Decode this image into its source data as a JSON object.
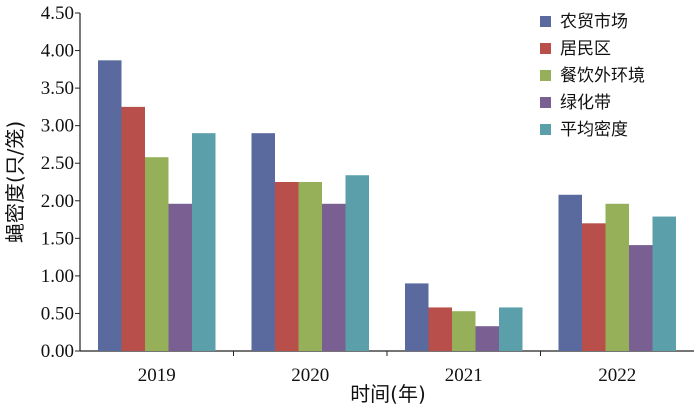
{
  "chart_data": {
    "type": "bar",
    "xlabel": "时间(年)",
    "ylabel": "蝇密度(只/笼)",
    "categories": [
      "2019",
      "2020",
      "2021",
      "2022"
    ],
    "ylim": [
      0,
      4.5
    ],
    "yticks": [
      "0.00",
      "0.50",
      "1.00",
      "1.50",
      "2.00",
      "2.50",
      "3.00",
      "3.50",
      "4.00",
      "4.50"
    ],
    "grid": false,
    "legend_position": "top-right",
    "series": [
      {
        "name": "农贸市场",
        "color": "#5b6a9e",
        "values": [
          3.87,
          2.9,
          0.9,
          2.08
        ]
      },
      {
        "name": "居民区",
        "color": "#b84f4a",
        "values": [
          3.25,
          2.25,
          0.58,
          1.7
        ]
      },
      {
        "name": "餐饮外环境",
        "color": "#96b05a",
        "values": [
          2.58,
          2.25,
          0.53,
          1.96
        ]
      },
      {
        "name": "绿化带",
        "color": "#7a5f92",
        "values": [
          1.96,
          1.96,
          0.33,
          1.41
        ]
      },
      {
        "name": "平均密度",
        "color": "#5b9faa",
        "values": [
          2.9,
          2.34,
          0.58,
          1.79
        ]
      }
    ]
  }
}
